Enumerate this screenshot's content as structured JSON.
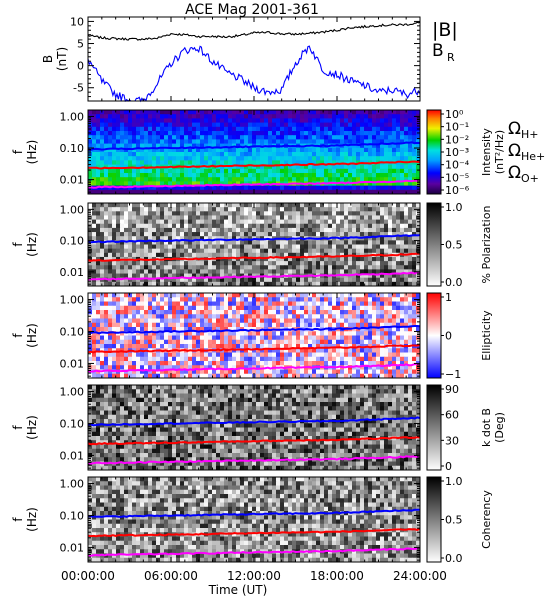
{
  "chart_data": {
    "type": "multi-panel-time-series-spectrogram",
    "title": "ACE Mag 2001-361",
    "x_axis": {
      "label": "Time (UT)",
      "ticks": [
        "00:00:00",
        "06:00:00",
        "12:00:00",
        "18:00:00",
        "24:00:00"
      ],
      "range_hours": [
        0,
        24
      ]
    },
    "panels": [
      {
        "name": "magnetic-field",
        "type": "line",
        "ylabel": "B",
        "yunit": "(nT)",
        "ylim": [
          -8,
          11
        ],
        "yticks": [
          "10",
          "5",
          "0",
          "-5"
        ],
        "series": [
          {
            "name": "|B|",
            "color": "#000000",
            "x": [
              0,
              1,
              2,
              3,
              4,
              5,
              6,
              7,
              8,
              9,
              10,
              11,
              12,
              13,
              14,
              15,
              16,
              17,
              18,
              19,
              20,
              21,
              22,
              23,
              24
            ],
            "values": [
              6.8,
              6.3,
              6.1,
              6.0,
              6.0,
              6.2,
              7.2,
              7.0,
              6.6,
              6.6,
              6.5,
              6.8,
              7.4,
              7.5,
              7.2,
              7.1,
              7.3,
              7.6,
              8.0,
              8.6,
              8.8,
              9.1,
              9.2,
              9.3,
              9.7
            ]
          },
          {
            "name": "B",
            "subscript": "R",
            "color": "#0000ff",
            "x": [
              0,
              1,
              2,
              3,
              4,
              5,
              6,
              7,
              8,
              9,
              10,
              11,
              12,
              13,
              14,
              15,
              16,
              17,
              18,
              19,
              20,
              21,
              22,
              23,
              24
            ],
            "values": [
              1.5,
              -3.5,
              -6.5,
              -7.8,
              -8.0,
              -4.0,
              0.5,
              3.5,
              4.0,
              1.0,
              -1.5,
              -3.0,
              -5.0,
              -6.0,
              -5.5,
              0.5,
              4.5,
              -1.0,
              -2.0,
              -3.5,
              -4.5,
              -6.0,
              -5.5,
              -6.5,
              -5.5
            ]
          }
        ]
      },
      {
        "name": "intensity-spectrogram",
        "type": "heatmap",
        "ylabel": "f",
        "yunit": "(Hz)",
        "yscale": "log",
        "yticks": [
          "1.00",
          "0.10",
          "0.01"
        ],
        "colorbar": {
          "label": "Intensity",
          "unit": "(nT²/Hz)",
          "ticks": [
            "10⁰",
            "10⁻¹",
            "10⁻²",
            "10⁻³",
            "10⁻⁴",
            "10⁻⁵",
            "10⁻⁶"
          ],
          "scale": "rainbow"
        }
      },
      {
        "name": "polarization-spectrogram",
        "type": "heatmap",
        "ylabel": "f",
        "yunit": "(Hz)",
        "yscale": "log",
        "yticks": [
          "1.00",
          "0.10",
          "0.01"
        ],
        "colorbar": {
          "label": "% Polarization",
          "ticks": [
            "1.0",
            "0.5",
            "0.0"
          ],
          "scale": "grayscale"
        }
      },
      {
        "name": "ellipticity-spectrogram",
        "type": "heatmap",
        "ylabel": "f",
        "yunit": "(Hz)",
        "yscale": "log",
        "yticks": [
          "1.00",
          "0.10",
          "0.01"
        ],
        "colorbar": {
          "label": "Ellipticity",
          "ticks": [
            "1",
            "0",
            "−1"
          ],
          "scale": "blue-white-red"
        }
      },
      {
        "name": "k-dot-b-spectrogram",
        "type": "heatmap",
        "ylabel": "f",
        "yunit": "(Hz)",
        "yscale": "log",
        "yticks": [
          "1.00",
          "0.10",
          "0.01"
        ],
        "colorbar": {
          "label": "k dot B",
          "unit": "(Deg)",
          "ticks": [
            "90",
            "60",
            "30",
            "0"
          ],
          "scale": "grayscale"
        }
      },
      {
        "name": "coherency-spectrogram",
        "type": "heatmap",
        "ylabel": "f",
        "yunit": "(Hz)",
        "yscale": "log",
        "yticks": [
          "1.00",
          "0.10",
          "0.01"
        ],
        "colorbar": {
          "label": "Coherency",
          "ticks": [
            "1.0",
            "0.5",
            "0.0"
          ],
          "scale": "grayscale"
        }
      }
    ],
    "gyrofrequency_lines": [
      {
        "symbol": "Ω",
        "subscript": "H+",
        "color": "#0000ff",
        "x_hours": [
          0,
          6,
          12,
          18,
          24
        ],
        "f_hz": [
          0.09,
          0.1,
          0.11,
          0.12,
          0.15
        ]
      },
      {
        "symbol": "Ω",
        "subscript": "He+",
        "color": "#ff0000",
        "x_hours": [
          0,
          6,
          12,
          18,
          24
        ],
        "f_hz": [
          0.023,
          0.025,
          0.028,
          0.031,
          0.037
        ]
      },
      {
        "symbol": "Ω",
        "subscript": "O+",
        "color": "#ff00ff",
        "x_hours": [
          0,
          6,
          12,
          18,
          24
        ],
        "f_hz": [
          0.0057,
          0.0063,
          0.007,
          0.0077,
          0.0093
        ]
      }
    ],
    "grid": false
  },
  "colors": {
    "bmag": "#000000",
    "br": "#0000ff",
    "h_plus": "#0000ff",
    "he_plus": "#ff0000",
    "o_plus": "#ff00ff"
  }
}
